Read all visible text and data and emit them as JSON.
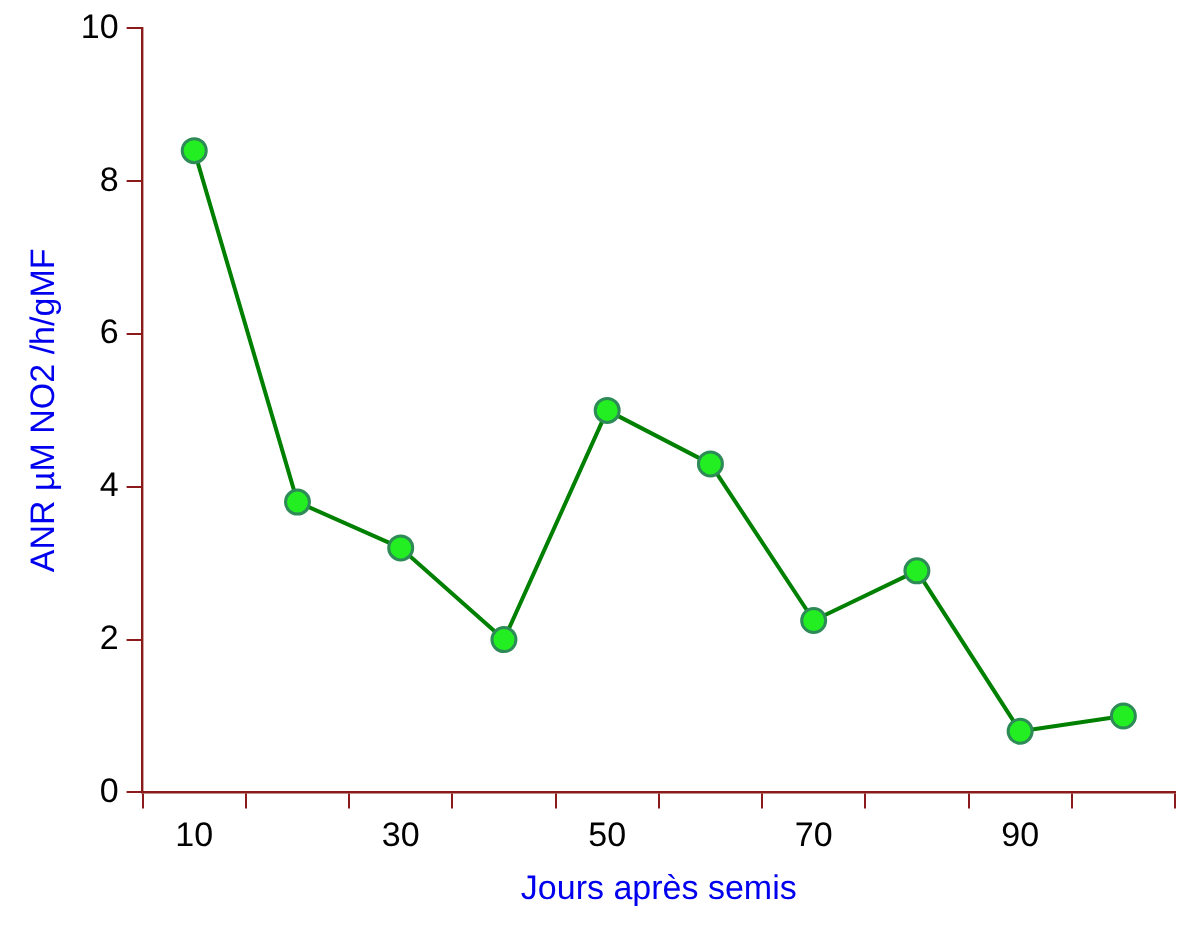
{
  "chart_data": {
    "type": "line",
    "xlabel": "Jours après semis",
    "ylabel": "ANR µM NO2 /h/gMF",
    "categories": [
      "10",
      null,
      "30",
      null,
      "50",
      null,
      "70",
      null,
      "90",
      null
    ],
    "series": [
      {
        "color": "#008000",
        "values": [
          8.4,
          3.8,
          3.2,
          2.0,
          5.0,
          4.3,
          2.25,
          2.9,
          0.8,
          1.0
        ]
      }
    ],
    "ylim": [
      0,
      10
    ],
    "yticks": [
      0,
      2,
      4,
      6,
      8,
      10
    ],
    "grid": false,
    "legend": false,
    "marker": "circle",
    "line_style": "solid"
  }
}
